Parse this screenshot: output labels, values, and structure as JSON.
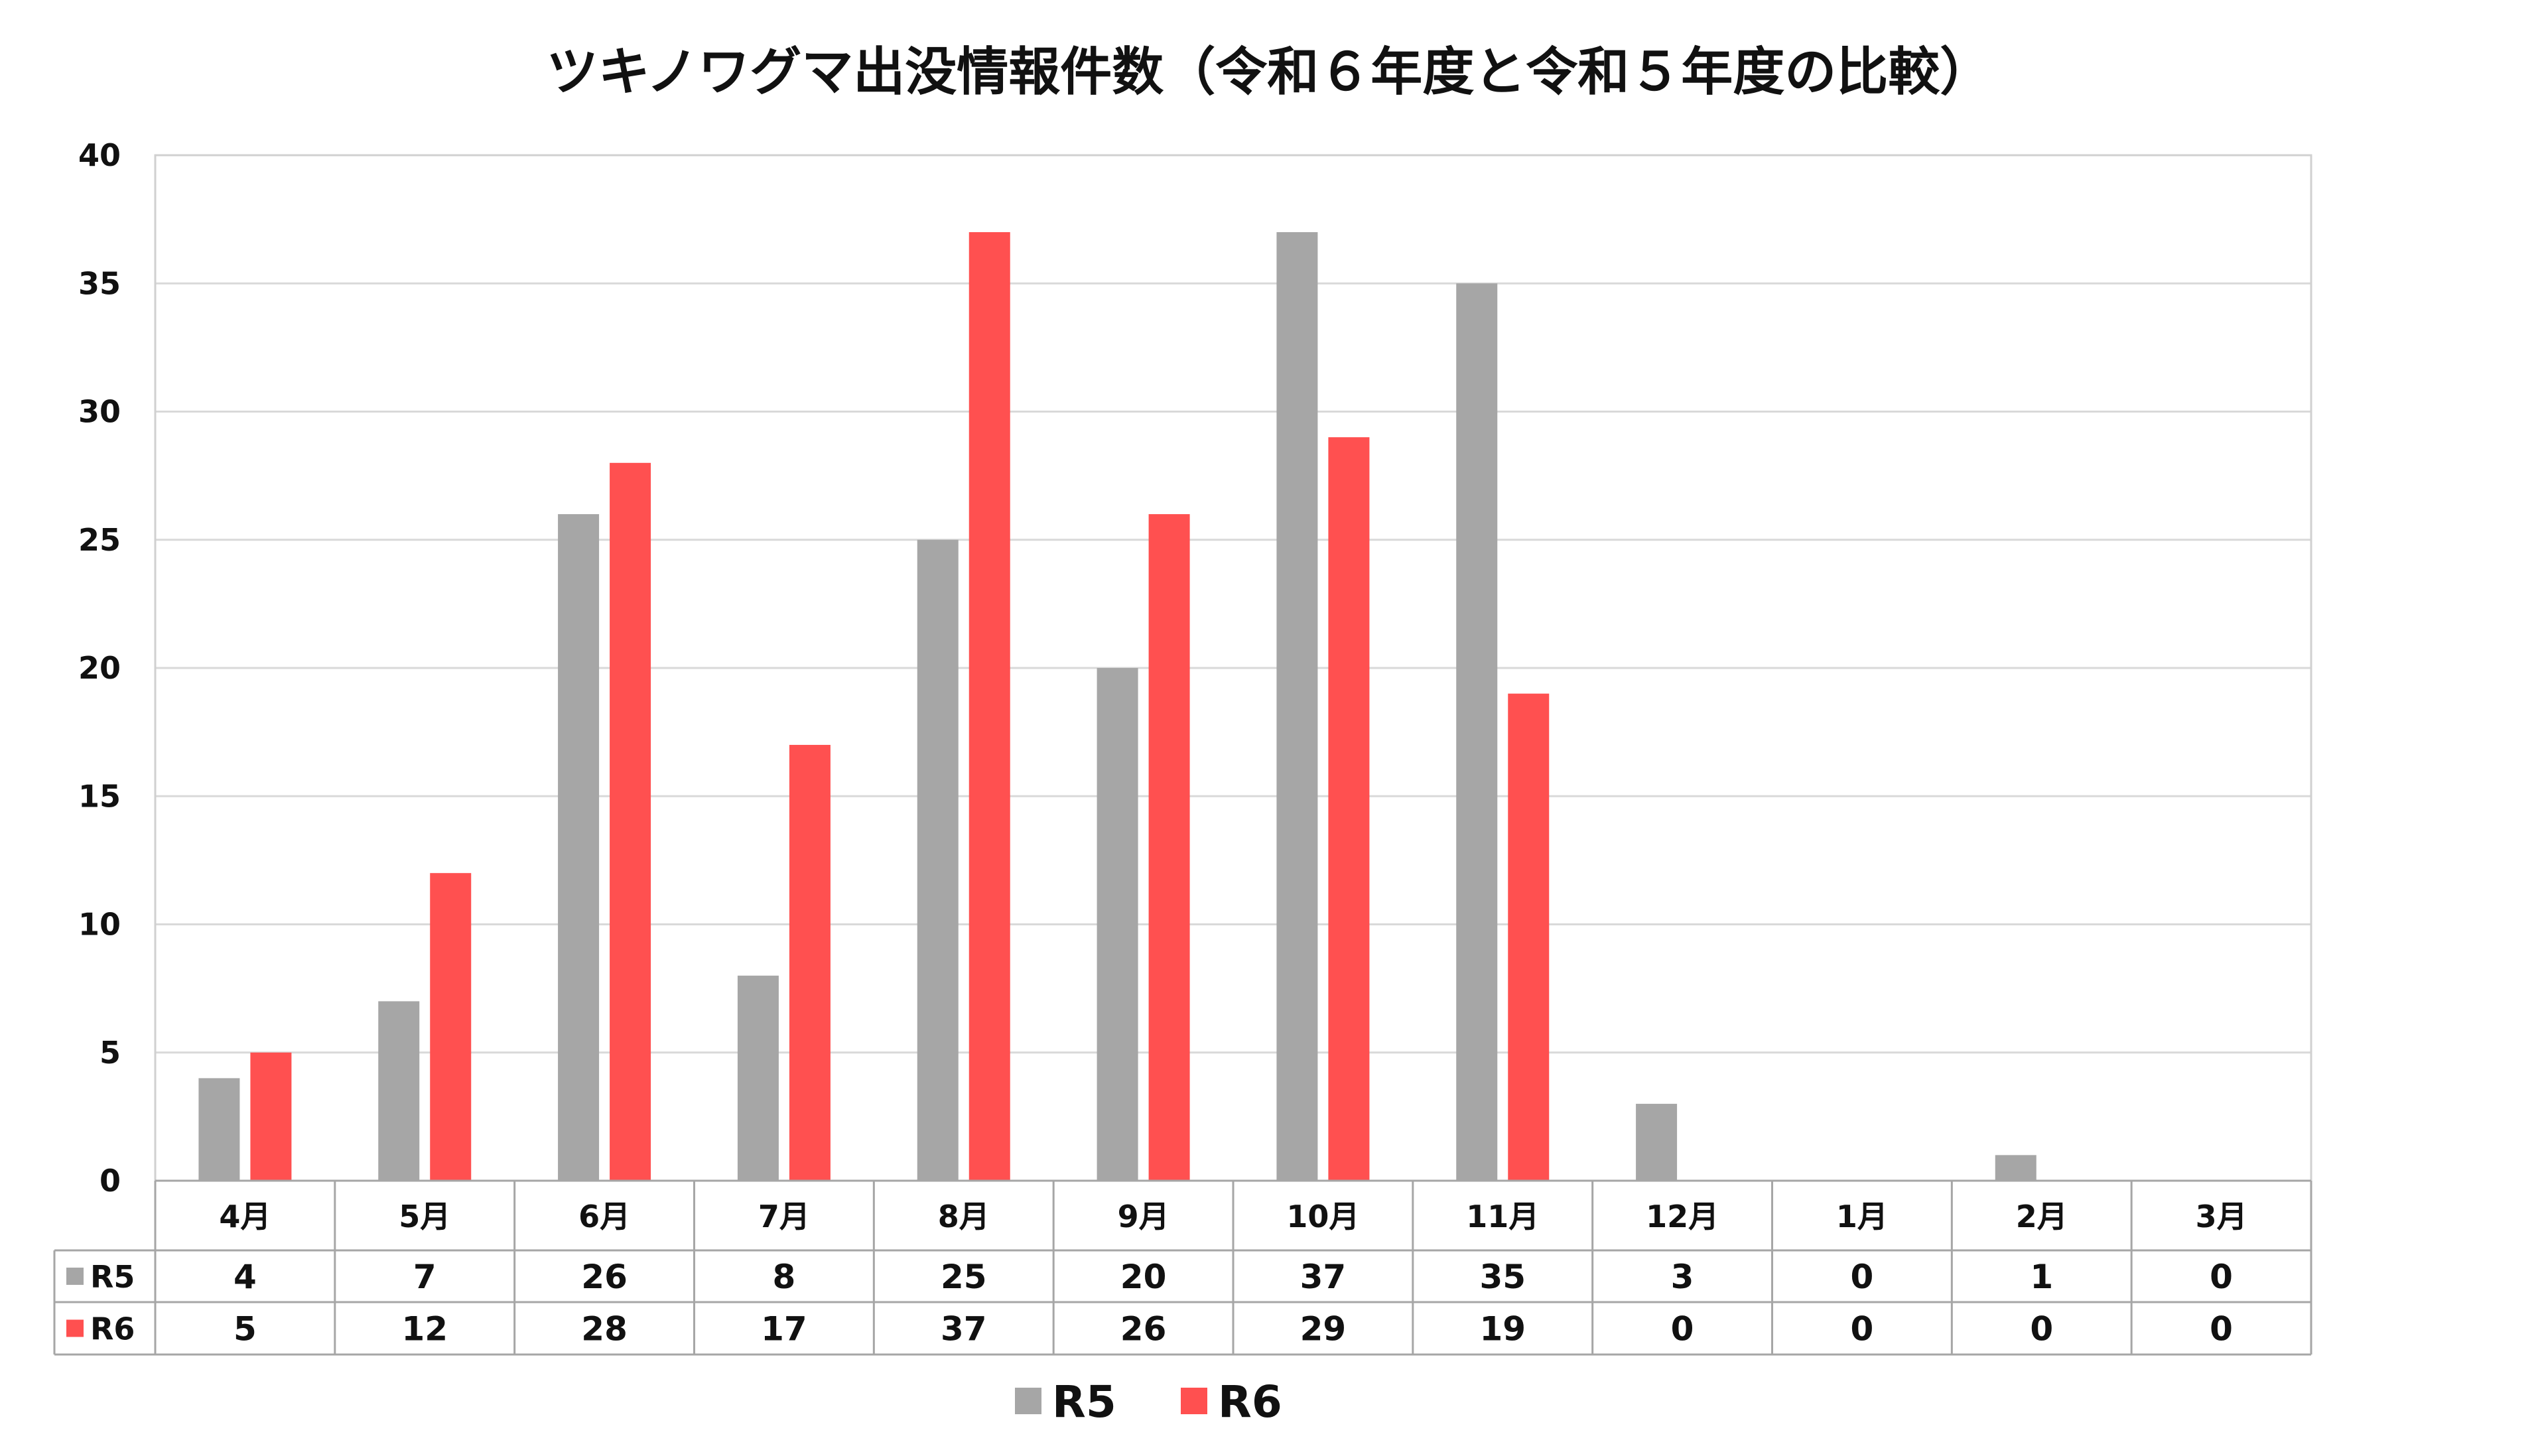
{
  "chart_data": {
    "type": "bar",
    "title": "ツキノワグマ出没情報件数（令和６年度と令和５年度の比較）",
    "categories": [
      "4月",
      "5月",
      "6月",
      "7月",
      "8月",
      "9月",
      "10月",
      "11月",
      "12月",
      "1月",
      "2月",
      "3月"
    ],
    "series": [
      {
        "name": "R5",
        "color": "#a6a6a6",
        "values": [
          4,
          7,
          26,
          8,
          25,
          20,
          37,
          35,
          3,
          0,
          1,
          0
        ]
      },
      {
        "name": "R6",
        "color": "#ff5050",
        "values": [
          5,
          12,
          28,
          17,
          37,
          26,
          29,
          19,
          0,
          0,
          0,
          0
        ]
      }
    ],
    "ylim": [
      0,
      40
    ],
    "yticks": [
      0,
      5,
      10,
      15,
      20,
      25,
      30,
      35,
      40
    ],
    "grid": true,
    "data_table": true,
    "legend": "bottom-center"
  }
}
